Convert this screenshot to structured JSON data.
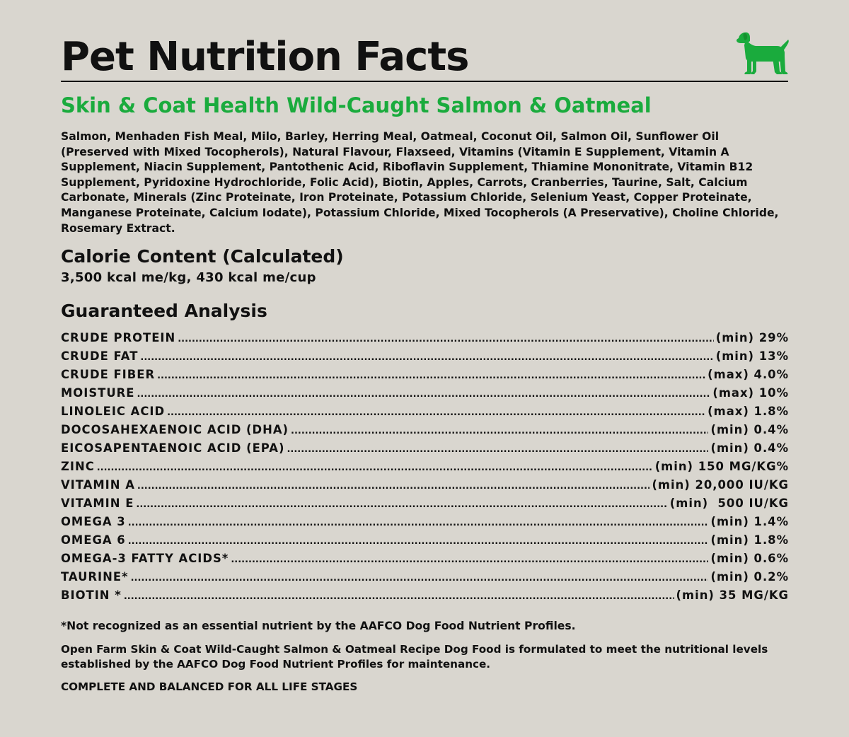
{
  "header": {
    "title": "Pet Nutrition Facts",
    "icon": "dog-icon",
    "accent_color": "#1aab3d"
  },
  "product": {
    "name": "Skin & Coat Health Wild-Caught Salmon & Oatmeal"
  },
  "ingredients": "Salmon, Menhaden Fish Meal, Milo, Barley, Herring Meal, Oatmeal, Coconut Oil, Salmon Oil, Sunflower Oil (Preserved with Mixed Tocopherols), Natural Flavour, Flaxseed, Vitamins (Vitamin E Supplement, Vitamin A Supplement, Niacin Supplement, Pantothenic Acid, Riboflavin Supplement, Thiamine Mononitrate, Vitamin B12 Supplement, Pyridoxine Hydrochloride, Folic Acid), Biotin, Apples, Carrots, Cranberries, Taurine, Salt, Calcium Carbonate, Minerals (Zinc Proteinate, Iron Proteinate, Potassium Chloride, Selenium Yeast, Copper Proteinate, Manganese Proteinate, Calcium Iodate), Potassium Chloride, Mixed Tocopherols (A Preservative), Choline Chloride, Rosemary Extract.",
  "calorie": {
    "heading": "Calorie Content (Calculated)",
    "value": "3,500 kcal me/kg, 430 kcal me/cup"
  },
  "analysis": {
    "heading": "Guaranteed Analysis",
    "rows": [
      {
        "name": "CRUDE PROTEIN",
        "amount": "(min) 29%"
      },
      {
        "name": "CRUDE FAT",
        "amount": "(min) 13%"
      },
      {
        "name": "CRUDE FIBER",
        "amount": "(max) 4.0%"
      },
      {
        "name": "MOISTURE",
        "amount": "(max) 10%"
      },
      {
        "name": "LINOLEIC ACID",
        "amount": "(max) 1.8%"
      },
      {
        "name": "DOCOSAHEXAENOIC ACID (DHA)",
        "amount": "(min) 0.4%"
      },
      {
        "name": "EICOSAPENTAENOIC ACID (EPA)",
        "amount": "(min) 0.4%"
      },
      {
        "name": "ZINC",
        "amount": "(min) 150 MG/KG%"
      },
      {
        "name": "VITAMIN A",
        "amount": "(min) 20,000 IU/KG"
      },
      {
        "name": "VITAMIN E",
        "amount": "(min)  500 IU/KG"
      },
      {
        "name": "OMEGA 3",
        "amount": "(min) 1.4%"
      },
      {
        "name": "OMEGA 6",
        "amount": "(min) 1.8%"
      },
      {
        "name": "OMEGA-3 FATTY ACIDS*",
        "amount": "(min) 0.6%"
      },
      {
        "name": "TAURINE*",
        "amount": "(min) 0.2%"
      },
      {
        "name": "BIOTIN *",
        "amount": "(min) 35 MG/KG"
      }
    ]
  },
  "footnotes": {
    "note": "*Not recognized as an essential nutrient by the AAFCO Dog Food Nutrient Profiles.",
    "statement": "Open Farm Skin & Coat Wild-Caught Salmon & Oatmeal Recipe Dog Food is formulated to meet the nutritional levels established by the AAFCO Dog Food Nutrient Profiles for maintenance.",
    "claim": "COMPLETE AND BALANCED FOR ALL LIFE STAGES"
  }
}
